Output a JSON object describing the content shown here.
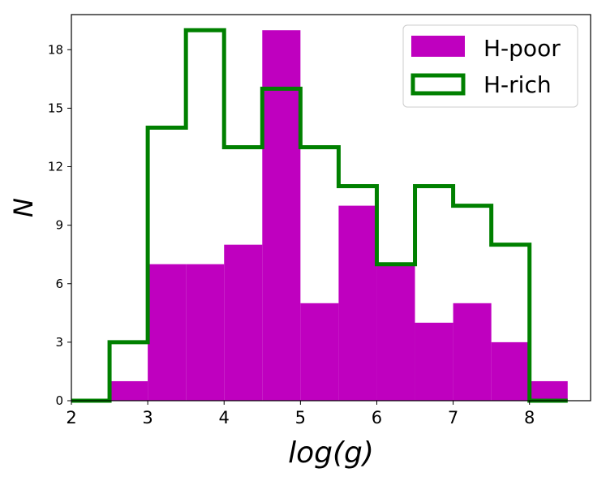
{
  "chart_data": {
    "type": "histogram",
    "xlabel": "log(g)",
    "ylabel": "N",
    "xlim": [
      2,
      8.8
    ],
    "ylim": [
      0,
      19.8
    ],
    "x_ticks": [
      "2",
      "3",
      "4",
      "5",
      "6",
      "7",
      "8"
    ],
    "y_ticks": [
      "0",
      "3",
      "6",
      "9",
      "12",
      "15",
      "18"
    ],
    "bin_edges": [
      2.0,
      2.5,
      3.0,
      3.5,
      4.0,
      4.5,
      5.0,
      5.5,
      6.0,
      6.5,
      7.0,
      7.5,
      8.0,
      8.5
    ],
    "legend_position": "top-right",
    "series": [
      {
        "name": "H-poor",
        "style": "filled",
        "color": "#bf00bf",
        "counts": [
          0,
          1,
          7,
          7,
          8,
          19,
          5,
          10,
          7,
          4,
          5,
          3,
          1
        ]
      },
      {
        "name": "H-rich",
        "style": "step",
        "color": "#008000",
        "counts": [
          0,
          3,
          14,
          19,
          13,
          16,
          13,
          11,
          7,
          11,
          10,
          8,
          0
        ]
      }
    ]
  }
}
